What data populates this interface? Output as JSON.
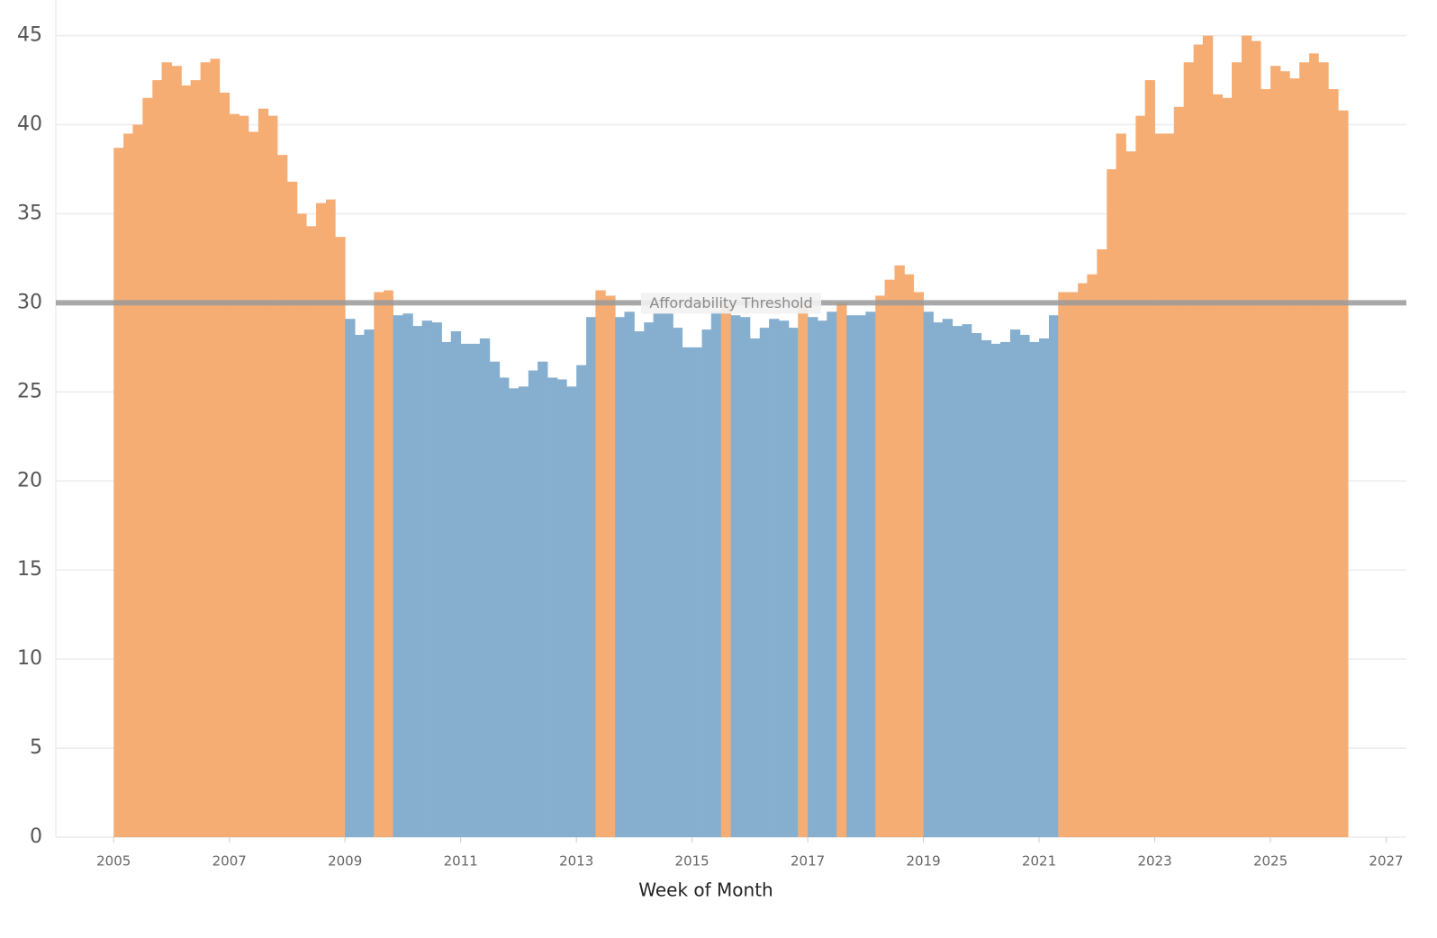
{
  "chart_data": {
    "type": "bar",
    "x_label": "Week of Month",
    "x": [
      2005,
      2005.17,
      2005.33,
      2005.5,
      2005.67,
      2005.83,
      2006,
      2006.17,
      2006.33,
      2006.5,
      2006.67,
      2006.83,
      2007,
      2007.17,
      2007.33,
      2007.5,
      2007.67,
      2007.83,
      2008,
      2008.17,
      2008.33,
      2008.5,
      2008.67,
      2008.83,
      2009,
      2009.17,
      2009.33,
      2009.5,
      2009.67,
      2009.83,
      2010,
      2010.17,
      2010.33,
      2010.5,
      2010.67,
      2010.83,
      2011,
      2011.17,
      2011.33,
      2011.5,
      2011.67,
      2011.83,
      2012,
      2012.17,
      2012.33,
      2012.5,
      2012.67,
      2012.83,
      2013,
      2013.17,
      2013.33,
      2013.5,
      2013.67,
      2013.83,
      2014,
      2014.17,
      2014.33,
      2014.5,
      2014.67,
      2014.83,
      2015,
      2015.17,
      2015.33,
      2015.5,
      2015.67,
      2015.83,
      2016,
      2016.17,
      2016.33,
      2016.5,
      2016.67,
      2016.83,
      2017,
      2017.17,
      2017.33,
      2017.5,
      2017.67,
      2017.83,
      2018,
      2018.17,
      2018.33,
      2018.5,
      2018.67,
      2018.83,
      2019,
      2019.17,
      2019.33,
      2019.5,
      2019.67,
      2019.83,
      2020,
      2020.17,
      2020.33,
      2020.5,
      2020.67,
      2020.83,
      2021,
      2021.17,
      2021.33,
      2021.5,
      2021.67,
      2021.83,
      2022,
      2022.17,
      2022.33,
      2022.5,
      2022.67,
      2022.83,
      2023,
      2023.17,
      2023.33,
      2023.5,
      2023.67,
      2023.83,
      2024,
      2024.17,
      2024.33,
      2024.5,
      2024.67,
      2024.83,
      2025,
      2025.17,
      2025.33,
      2025.5,
      2025.67,
      2025.83,
      2026,
      2026.17
    ],
    "values": [
      38.7,
      39.5,
      40,
      41.5,
      42.5,
      43.5,
      43.3,
      42.2,
      42.5,
      43.5,
      43.7,
      41.8,
      40.6,
      40.5,
      39.6,
      40.9,
      40.5,
      38.3,
      36.8,
      35,
      34.3,
      35.6,
      35.8,
      33.7,
      29.1,
      28.2,
      28.5,
      30.6,
      30.7,
      29.3,
      29.4,
      28.7,
      29,
      28.9,
      27.8,
      28.4,
      27.7,
      27.7,
      28,
      26.7,
      25.8,
      25.2,
      25.3,
      26.2,
      26.7,
      25.8,
      25.7,
      25.3,
      26.5,
      29.2,
      30.7,
      30.4,
      29.2,
      29.5,
      28.4,
      28.9,
      29.4,
      29.4,
      28.6,
      27.5,
      27.5,
      28.5,
      29.5,
      30.1,
      29.3,
      29.2,
      28,
      28.6,
      29.1,
      29,
      28.6,
      30.1,
      29.2,
      29,
      29.5,
      30,
      29.3,
      29.3,
      29.5,
      30.4,
      31.3,
      32.1,
      31.6,
      30.6,
      29.5,
      28.9,
      29.1,
      28.7,
      28.8,
      28.3,
      27.9,
      27.7,
      27.8,
      28.5,
      28.2,
      27.8,
      28,
      29.3,
      30.6,
      30.6,
      31.1,
      31.6,
      33,
      37.5,
      39.5,
      38.5,
      40.5,
      42.5,
      39.5,
      39.5,
      41,
      43.5,
      44.5,
      45,
      41.7,
      41.5,
      43.5,
      45,
      44.7,
      42,
      43.3,
      43,
      42.6,
      43.5,
      44,
      43.5,
      42,
      40.8
    ],
    "threshold": {
      "value": 30,
      "label": "Affordability Threshold"
    },
    "above_color": "#f5ad74",
    "below_color": "#86afcf",
    "threshold_color": "#9a9a9a",
    "xlim": [
      2004,
      2027.35
    ],
    "xticks": [
      2005,
      2007,
      2009,
      2011,
      2013,
      2015,
      2017,
      2019,
      2021,
      2023,
      2025,
      2027
    ],
    "ylim": [
      0,
      47
    ],
    "yticks": [
      0,
      5,
      10,
      15,
      20,
      25,
      30,
      35,
      40,
      45
    ],
    "grid": true
  }
}
